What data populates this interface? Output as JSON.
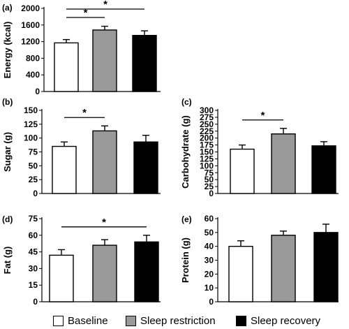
{
  "colors": {
    "baseline": "#ffffff",
    "restriction": "#999999",
    "recovery": "#000000",
    "stroke": "#000000"
  },
  "legend": [
    {
      "label": "Baseline",
      "color": "#ffffff"
    },
    {
      "label": "Sleep restriction",
      "color": "#999999"
    },
    {
      "label": "Sleep recovery",
      "color": "#000000"
    }
  ],
  "chart_data": [
    {
      "panel": "(a)",
      "type": "bar",
      "ylabel": "Energy (kcal)",
      "ylim": [
        0,
        2000
      ],
      "yticks": [
        0,
        400,
        800,
        1200,
        1600,
        2000
      ],
      "series": [
        {
          "name": "Baseline",
          "value": 1170,
          "error": 80
        },
        {
          "name": "Sleep restriction",
          "value": 1480,
          "error": 90
        },
        {
          "name": "Sleep recovery",
          "value": 1350,
          "error": 110
        }
      ],
      "significance": [
        {
          "from": 0,
          "to": 1,
          "label": "*"
        },
        {
          "from": 0,
          "to": 2,
          "label": "*"
        }
      ]
    },
    {
      "panel": "(b)",
      "type": "bar",
      "ylabel": "Sugar (g)",
      "ylim": [
        0,
        150
      ],
      "yticks": [
        0,
        25,
        50,
        75,
        100,
        125,
        150
      ],
      "series": [
        {
          "name": "Baseline",
          "value": 85,
          "error": 8
        },
        {
          "name": "Sleep restriction",
          "value": 113,
          "error": 9
        },
        {
          "name": "Sleep recovery",
          "value": 93,
          "error": 12
        }
      ],
      "significance": [
        {
          "from": 0,
          "to": 1,
          "label": "*"
        }
      ]
    },
    {
      "panel": "(c)",
      "type": "bar",
      "ylabel": "Carbohydrate (g)",
      "ylim": [
        0,
        300
      ],
      "yticks": [
        0,
        25,
        50,
        75,
        100,
        125,
        150,
        175,
        200,
        225,
        250,
        275,
        300
      ],
      "series": [
        {
          "name": "Baseline",
          "value": 160,
          "error": 15
        },
        {
          "name": "Sleep restriction",
          "value": 215,
          "error": 20
        },
        {
          "name": "Sleep recovery",
          "value": 172,
          "error": 15
        }
      ],
      "significance": [
        {
          "from": 0,
          "to": 1,
          "label": "*"
        }
      ]
    },
    {
      "panel": "(d)",
      "type": "bar",
      "ylabel": "Fat (g)",
      "ylim": [
        0,
        75
      ],
      "yticks": [
        0,
        15,
        30,
        45,
        60,
        75
      ],
      "series": [
        {
          "name": "Baseline",
          "value": 42,
          "error": 5
        },
        {
          "name": "Sleep restriction",
          "value": 51,
          "error": 5
        },
        {
          "name": "Sleep recovery",
          "value": 54,
          "error": 6
        }
      ],
      "significance": [
        {
          "from": 0,
          "to": 2,
          "label": "*"
        }
      ]
    },
    {
      "panel": "(e)",
      "type": "bar",
      "ylabel": "Protein (g)",
      "ylim": [
        0,
        60
      ],
      "yticks": [
        0,
        10,
        20,
        30,
        40,
        50,
        60
      ],
      "series": [
        {
          "name": "Baseline",
          "value": 40,
          "error": 4
        },
        {
          "name": "Sleep restriction",
          "value": 48,
          "error": 3
        },
        {
          "name": "Sleep recovery",
          "value": 50,
          "error": 6
        }
      ],
      "significance": []
    }
  ]
}
